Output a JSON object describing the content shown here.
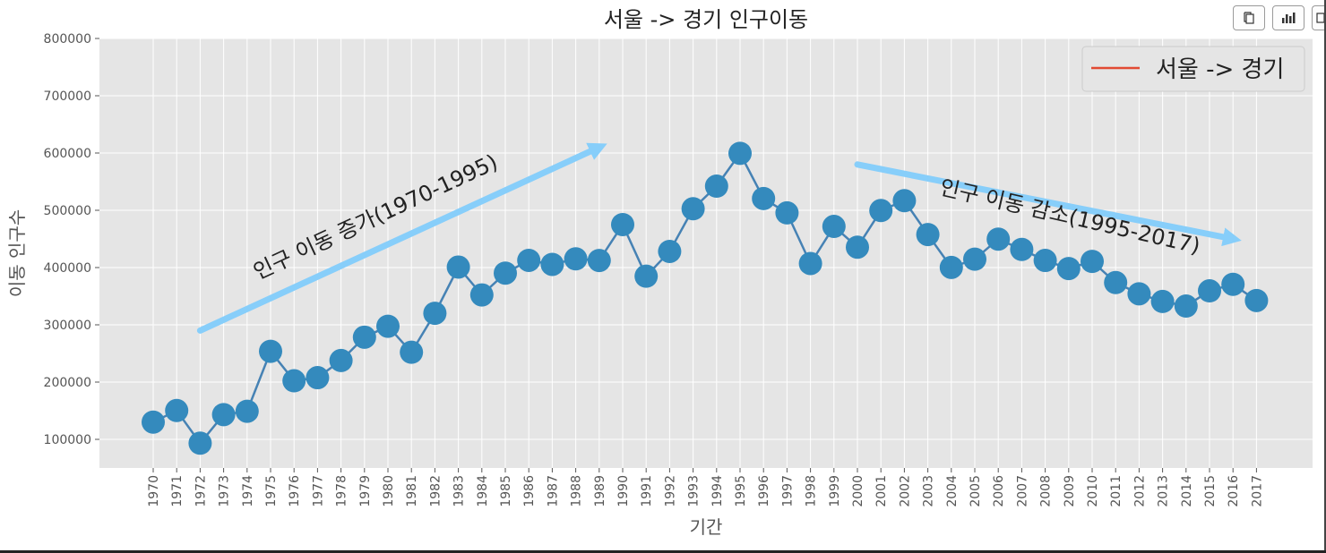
{
  "toolbar": {
    "buttons": [
      {
        "name": "copy-icon"
      },
      {
        "name": "bar-chart-icon"
      },
      {
        "name": "window-icon"
      }
    ]
  },
  "colors": {
    "background": "#e5e5e5",
    "grid": "#ffffff",
    "series": "#4682b4",
    "marker": "#348abd",
    "arrow": "#87cefa",
    "legend_line": "#e24a33"
  },
  "chart_data": {
    "type": "line",
    "title": "서울 -> 경기 인구이동",
    "xlabel": "기간",
    "ylabel": "이동 인구수",
    "ylim": [
      50000,
      800000
    ],
    "yticks": [
      100000,
      200000,
      300000,
      400000,
      500000,
      600000,
      700000,
      800000
    ],
    "grid": true,
    "legend_position": "top-right",
    "categories": [
      "1970",
      "1971",
      "1972",
      "1973",
      "1974",
      "1975",
      "1976",
      "1977",
      "1978",
      "1979",
      "1980",
      "1981",
      "1982",
      "1983",
      "1984",
      "1985",
      "1986",
      "1987",
      "1988",
      "1989",
      "1990",
      "1991",
      "1992",
      "1993",
      "1994",
      "1995",
      "1996",
      "1997",
      "1998",
      "1999",
      "2000",
      "2001",
      "2002",
      "2003",
      "2004",
      "2005",
      "2006",
      "2007",
      "2008",
      "2009",
      "2010",
      "2011",
      "2012",
      "2013",
      "2014",
      "2015",
      "2016",
      "2017"
    ],
    "series": [
      {
        "name": "서울 -> 경기",
        "values": [
          130149,
          150313,
          93333,
          143234,
          149045,
          253705,
          202276,
          207722,
          237684,
          278411,
          297539,
          252073,
          320174,
          400875,
          352238,
          390265,
          412535,
          405495,
          415174,
          412379,
          475059,
          384884,
          428201,
          502677,
          542179,
          599411,
          520566,
          495454,
          407050,
          471841,
          435573,
          499575,
          516765,
          457656,
          400206,
          414621,
          449632,
          431637,
          412408,
          398282,
          410735,
          373771,
          354135,
          340801,
          332785,
          359337,
          370760,
          342433
        ]
      }
    ],
    "annotations": [
      {
        "text": "인구 이동 증가(1970-1995)",
        "type": "text",
        "rotation": 25,
        "anchor": [
          "1974",
          410000
        ]
      },
      {
        "text": "",
        "type": "arrow",
        "from": [
          "1972",
          290000
        ],
        "to": [
          "1989",
          610000
        ]
      },
      {
        "text": "인구 이동 감소(1995-2017)",
        "type": "text",
        "rotation": -13,
        "anchor": [
          "2003",
          560000
        ]
      },
      {
        "text": "",
        "type": "arrow",
        "from": [
          "2000",
          580000
        ],
        "to": [
          "2016",
          450000
        ]
      }
    ]
  }
}
